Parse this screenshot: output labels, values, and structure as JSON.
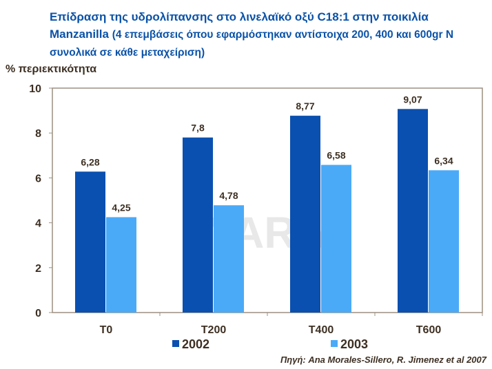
{
  "title": {
    "main": "Επίδραση της υδρολίπανσης στο λινελαϊκό οξύ C18:1 στην ποικιλία Manzanilla",
    "sub": "(4 επεμβάσεις όπου εφαρμόστηκαν αντίστοιχα 200, 400 και 600gr N συνολικά σε κάθε μεταχείριση)"
  },
  "source": "Πηγή: Ana Morales-Sillero, R. Jimenez et al 2007",
  "watermark": "YARA",
  "chart_data": {
    "type": "bar",
    "title": "Επίδραση της υδρολίπανσης στο λινελαϊκό οξύ C18:1 στην ποικιλία Manzanilla",
    "xlabel": "",
    "ylabel": "% περιεκτικότητα",
    "ylim": [
      0,
      10
    ],
    "yticks": [
      0,
      2,
      4,
      6,
      8,
      10
    ],
    "categories": [
      "T0",
      "T200",
      "T400",
      "T600"
    ],
    "series": [
      {
        "name": "2002",
        "color": "#0a50b0",
        "values": [
          6.28,
          7.8,
          8.77,
          9.07
        ],
        "labels": [
          "6,28",
          "7,8",
          "8,77",
          "9,07"
        ]
      },
      {
        "name": "2003",
        "color": "#4aaaf8",
        "values": [
          4.25,
          4.78,
          6.58,
          6.34
        ],
        "labels": [
          "4,25",
          "4,78",
          "6,58",
          "6,34"
        ]
      }
    ],
    "legend": "bottom",
    "grid": false
  }
}
